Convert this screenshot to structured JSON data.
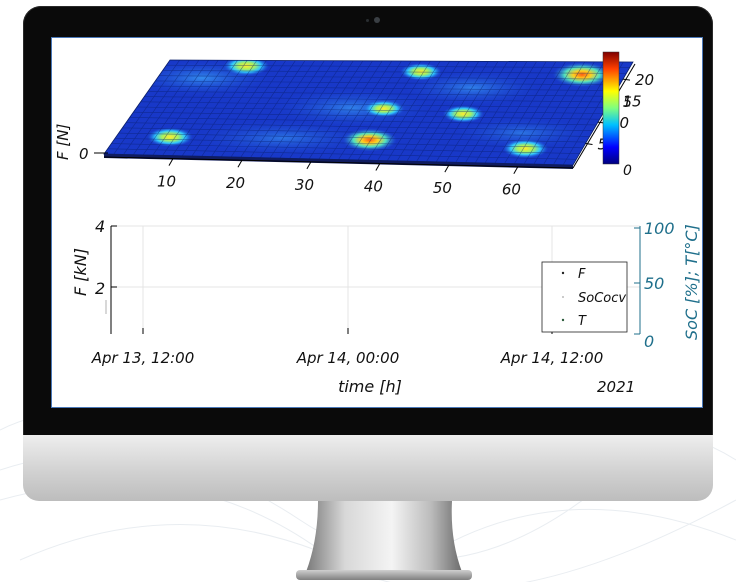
{
  "colors": {
    "bezel": "#0a0a0a",
    "screen_border": "#4a78b8",
    "right_axis": "#1f6f8b",
    "surface_base": "#1432c8",
    "hotspot": "#f0d020"
  },
  "chart_data": [
    {
      "type": "heatmap",
      "view": "3d-surface",
      "zlabel": "F [N]",
      "z_tick": "0",
      "x_ticks": [
        "10",
        "20",
        "30",
        "40",
        "50",
        "60"
      ],
      "y_ticks": [
        "5",
        "10",
        "15",
        "20"
      ],
      "colorbar": {
        "ticks": [
          "0",
          "5"
        ],
        "colormap": "jet",
        "colors": [
          "#00007f",
          "#0000ff",
          "#00c0ff",
          "#7fff7f",
          "#ffff00",
          "#ff4000",
          "#7f0000"
        ]
      },
      "hotspots_description_free": true,
      "hotspots": [
        {
          "x": 12,
          "y": 22,
          "value": 4
        },
        {
          "x": 38,
          "y": 21,
          "value": 3
        },
        {
          "x": 62,
          "y": 20,
          "value": 7
        },
        {
          "x": 36,
          "y": 12,
          "value": 3
        },
        {
          "x": 48,
          "y": 11,
          "value": 3
        },
        {
          "x": 8,
          "y": 4,
          "value": 4
        },
        {
          "x": 37,
          "y": 4,
          "value": 6
        },
        {
          "x": 60,
          "y": 3,
          "value": 4
        }
      ],
      "grid": true
    },
    {
      "type": "line",
      "xlabel": "time [h]",
      "ylabel": "F [kN]",
      "ylabel_right": "SoC [%]; T[°C]",
      "x_ticks": [
        "Apr 13, 12:00",
        "Apr 14, 00:00",
        "Apr 14, 12:00"
      ],
      "x_secondary_label": "2021",
      "y_ticks": [
        "2",
        "4"
      ],
      "y_right_ticks": [
        "0",
        "50",
        "100"
      ],
      "ylim": [
        1,
        4
      ],
      "ylim_right": [
        0,
        100
      ],
      "legend_position": "right",
      "series": [
        {
          "name": "F",
          "values": []
        },
        {
          "name": "SoCocv",
          "values": []
        },
        {
          "name": "T",
          "values": []
        }
      ],
      "grid": true
    }
  ]
}
